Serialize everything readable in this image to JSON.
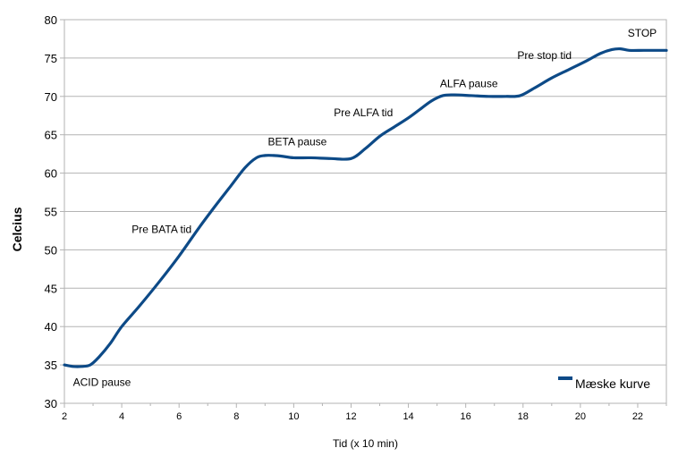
{
  "chart_data": {
    "type": "line",
    "title": "",
    "xlabel": "Tid (x 10 min)",
    "ylabel": "Celcius",
    "xlim": [
      2,
      23
    ],
    "ylim": [
      30,
      80
    ],
    "x_ticks": [
      2,
      4,
      6,
      8,
      10,
      12,
      14,
      16,
      18,
      20,
      22
    ],
    "y_ticks": [
      30,
      35,
      40,
      45,
      50,
      55,
      60,
      65,
      70,
      75,
      80
    ],
    "grid": true,
    "legend_position": "bottom-right",
    "colors": {
      "series": "#0d4a87",
      "grid": "#b3b3b3",
      "axis": "#b3b3b3"
    },
    "series": [
      {
        "name": "Mæske kurve",
        "x": [
          2.0,
          2.3,
          2.6,
          2.9,
          3.2,
          3.6,
          4.0,
          4.6,
          5.3,
          6.0,
          6.7,
          7.3,
          7.8,
          8.3,
          8.7,
          9.0,
          9.3,
          9.6,
          10.0,
          10.6,
          11.3,
          12.0,
          12.5,
          13.0,
          13.5,
          14.0,
          14.4,
          14.8,
          15.2,
          15.6,
          16.2,
          16.8,
          17.4,
          17.9,
          18.4,
          19.0,
          19.6,
          20.2,
          20.7,
          21.1,
          21.4,
          21.7,
          22.2,
          22.6,
          23.0
        ],
        "y": [
          35.0,
          34.8,
          34.8,
          35.0,
          36.0,
          37.8,
          40.0,
          42.6,
          45.8,
          49.2,
          52.9,
          55.9,
          58.3,
          60.7,
          62.0,
          62.3,
          62.3,
          62.2,
          62.0,
          62.0,
          61.9,
          61.9,
          63.2,
          64.8,
          66.0,
          67.2,
          68.3,
          69.4,
          70.1,
          70.2,
          70.1,
          70.0,
          70.0,
          70.1,
          71.1,
          72.4,
          73.5,
          74.6,
          75.6,
          76.1,
          76.2,
          76.0,
          76.0,
          76.0,
          76.0
        ]
      }
    ],
    "annotations": [
      {
        "text": "ACID pause",
        "x": 2.3,
        "y": 32.3
      },
      {
        "text": "Pre BATA tid",
        "x": 4.35,
        "y": 52.2
      },
      {
        "text": "BETA pause",
        "x": 9.1,
        "y": 63.6
      },
      {
        "text": "Pre ALFA tid",
        "x": 11.4,
        "y": 67.4
      },
      {
        "text": "ALFA pause",
        "x": 15.1,
        "y": 71.2
      },
      {
        "text": "Pre stop tid",
        "x": 17.8,
        "y": 74.9
      },
      {
        "text": "STOP",
        "x": 21.65,
        "y": 77.8
      }
    ]
  }
}
